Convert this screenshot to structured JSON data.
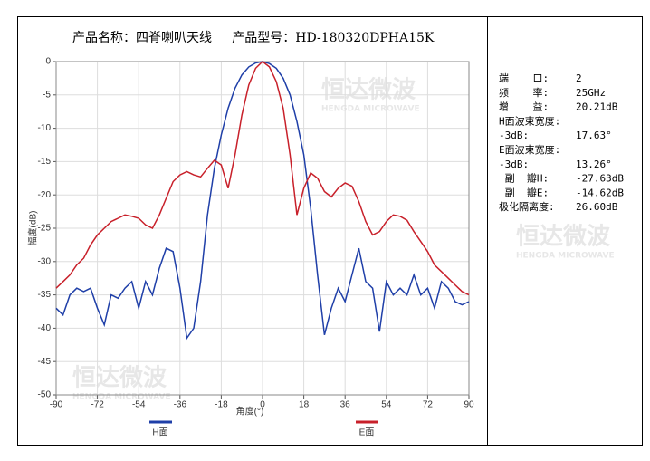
{
  "chart_data": {
    "type": "line",
    "title": "产品名称：四脊喇叭天线     产品型号：HD-180320DPHA15K",
    "xlabel": "角度(°)",
    "ylabel": "幅度(dB)",
    "watermark": "恒达微波",
    "watermark_en": "HENGDA MICROWAVE",
    "x": [
      -90,
      -87,
      -84,
      -81,
      -78,
      -75,
      -72,
      -69,
      -66,
      -63,
      -60,
      -57,
      -54,
      -51,
      -48,
      -45,
      -42,
      -39,
      -36,
      -33,
      -30,
      -27,
      -24,
      -21,
      -18,
      -15,
      -12,
      -9,
      -6,
      -3,
      0,
      3,
      6,
      9,
      12,
      15,
      18,
      21,
      24,
      27,
      30,
      33,
      36,
      39,
      42,
      45,
      48,
      51,
      54,
      57,
      60,
      63,
      66,
      69,
      72,
      75,
      78,
      81,
      84,
      87,
      90
    ],
    "series": [
      {
        "name": "H面",
        "color": "#1f3fa8",
        "values": [
          -37,
          -38,
          -35,
          -34,
          -34.5,
          -34,
          -37,
          -39.5,
          -35,
          -35.5,
          -34,
          -33,
          -37,
          -33,
          -35,
          -31,
          -28,
          -28.5,
          -34,
          -41.5,
          -40,
          -33,
          -23,
          -16,
          -11,
          -7,
          -4,
          -2,
          -0.8,
          -0.2,
          0,
          -0.3,
          -1,
          -2.5,
          -5,
          -9,
          -14,
          -22,
          -32,
          -41,
          -37,
          -34,
          -36,
          -32,
          -28,
          -33,
          -34,
          -40.5,
          -33,
          -35,
          -34,
          -35,
          -32,
          -35,
          -34,
          -37,
          -33,
          -34,
          -36,
          -36.5,
          -36
        ]
      },
      {
        "name": "E面",
        "color": "#c8202a",
        "values": [
          -34,
          -33,
          -32,
          -30.5,
          -29.5,
          -27.5,
          -26,
          -25,
          -24,
          -23.5,
          -23,
          -23.2,
          -23.5,
          -24.5,
          -25,
          -23,
          -20.5,
          -18,
          -17,
          -16.5,
          -17,
          -17.3,
          -16,
          -14.8,
          -15.5,
          -19,
          -14,
          -8,
          -3.5,
          -1,
          0,
          -0.8,
          -3,
          -7,
          -14,
          -23,
          -19,
          -16.7,
          -17.5,
          -19.5,
          -20.3,
          -19,
          -18.2,
          -18.7,
          -21,
          -24,
          -26,
          -25.5,
          -24,
          -23,
          -23.2,
          -23.8,
          -25.5,
          -27,
          -28.5,
          -30.5,
          -31.5,
          -32.5,
          -33.5,
          -34.5,
          -35
        ]
      }
    ],
    "xlim": [
      -90,
      90
    ],
    "xticks": [
      -90,
      -72,
      -54,
      -36,
      -18,
      0,
      18,
      36,
      54,
      72,
      90
    ],
    "ylim": [
      -50,
      0
    ],
    "yticks": [
      0,
      -5,
      -10,
      -15,
      -20,
      -25,
      -30,
      -35,
      -40,
      -45,
      -50
    ],
    "grid": true,
    "specs": [
      {
        "label": "端    口:",
        "value": "2"
      },
      {
        "label": "频    率:",
        "value": "25GHz"
      },
      {
        "label": "增    益:",
        "value": "20.21dB"
      },
      {
        "label": "H面波束宽度:"
      },
      {
        "label": "-3dB:",
        "value": "17.63°"
      },
      {
        "label": "E面波束宽度:"
      },
      {
        "label": "-3dB:",
        "value": "13.26°"
      },
      {
        "label": " 副  瓣H:",
        "value": "-27.63dB"
      },
      {
        "label": " 副  瓣E:",
        "value": "-14.62dB"
      },
      {
        "label": "极化隔离度:",
        "value": "26.60dB"
      }
    ]
  }
}
